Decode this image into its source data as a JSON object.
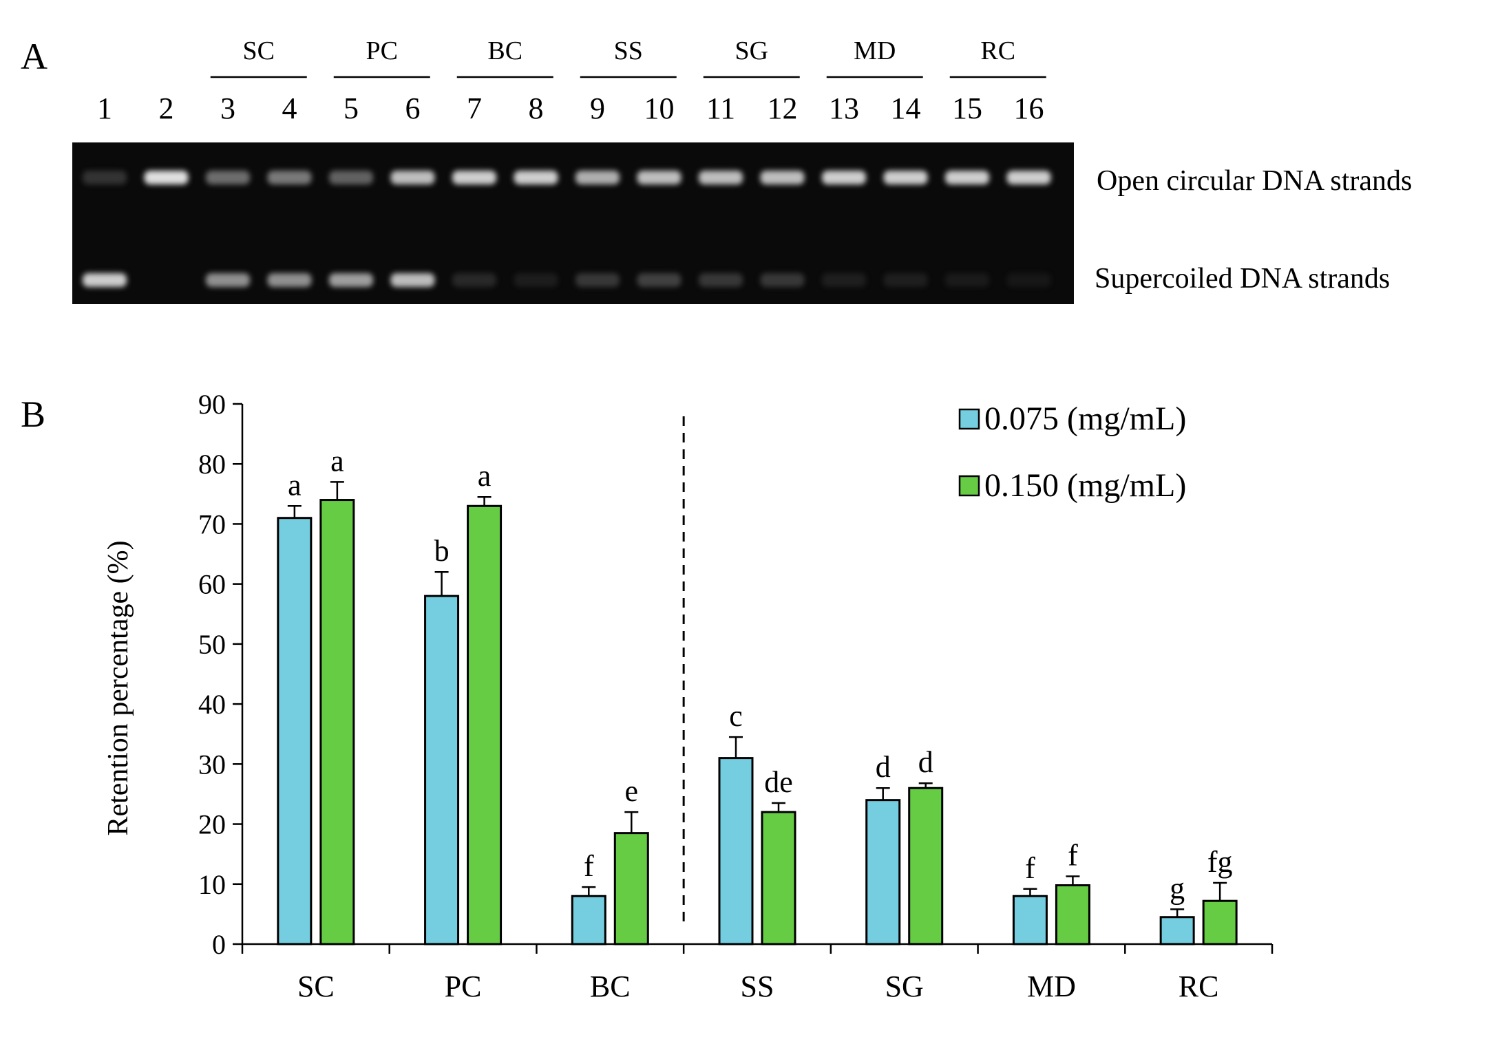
{
  "panel_a": {
    "label": "A",
    "groups": [
      "SC",
      "PC",
      "BC",
      "SS",
      "SG",
      "MD",
      "RC"
    ],
    "lanes": [
      "1",
      "2",
      "3",
      "4",
      "5",
      "6",
      "7",
      "8",
      "9",
      "10",
      "11",
      "12",
      "13",
      "14",
      "15",
      "16"
    ],
    "band_labels": {
      "open": "Open circular DNA strands",
      "supercoiled": "Supercoiled DNA strands"
    },
    "open_intensity": [
      0.25,
      0.95,
      0.55,
      0.6,
      0.5,
      0.85,
      0.9,
      0.9,
      0.8,
      0.85,
      0.85,
      0.85,
      0.9,
      0.9,
      0.9,
      0.9
    ],
    "super_intensity": [
      0.9,
      0.0,
      0.7,
      0.7,
      0.75,
      0.85,
      0.2,
      0.1,
      0.3,
      0.35,
      0.3,
      0.3,
      0.12,
      0.12,
      0.08,
      0.05
    ]
  },
  "panel_b": {
    "label": "B"
  },
  "chart_data": {
    "type": "bar",
    "title": "",
    "xlabel": "",
    "ylabel": "Retention percentage (%)",
    "ylim": [
      0,
      90
    ],
    "yticks": [
      0,
      10,
      20,
      30,
      40,
      50,
      60,
      70,
      80,
      90
    ],
    "categories": [
      "SC",
      "PC",
      "BC",
      "SS",
      "SG",
      "MD",
      "RC"
    ],
    "series": [
      {
        "name": "0.075 (mg/mL)",
        "color": "#74cee0",
        "values": [
          71,
          58,
          8,
          31,
          24,
          8,
          4.5
        ],
        "errors": [
          2,
          4,
          1.5,
          3.5,
          2,
          1.2,
          1.3
        ],
        "letters": [
          "a",
          "b",
          "f",
          "c",
          "d",
          "f",
          "g"
        ]
      },
      {
        "name": "0.150 (mg/mL)",
        "color": "#66cc44",
        "values": [
          74,
          73,
          18.5,
          22,
          26,
          9.8,
          7.2
        ],
        "errors": [
          3,
          1.5,
          3.5,
          1.5,
          0.8,
          1.5,
          3
        ],
        "letters": [
          "a",
          "a",
          "e",
          "de",
          "d",
          "f",
          "fg"
        ]
      }
    ],
    "divider_after_category": "BC",
    "legend": "top-right"
  }
}
